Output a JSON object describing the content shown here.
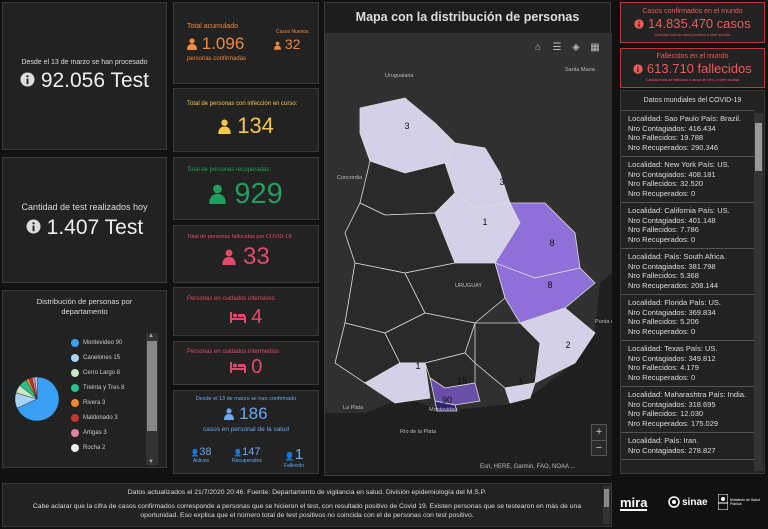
{
  "tests_total": {
    "caption": "Desde el 13 de marzo se han procesado",
    "value": "92.056 Test"
  },
  "tests_today": {
    "caption": "Cantidad de test realizados hoy",
    "value": "1.407 Test"
  },
  "pie": {
    "title": "Distribución de personas por departamento",
    "legend": [
      {
        "label": "Montevideo 90",
        "color": "#3aa0f5"
      },
      {
        "label": "Canelones 15",
        "color": "#a7d3f5"
      },
      {
        "label": "Cerro Largo 8",
        "color": "#c9e7c2"
      },
      {
        "label": "Treinta y Tres 8",
        "color": "#2bbf8c"
      },
      {
        "label": "Rivera 3",
        "color": "#f08a2c"
      },
      {
        "label": "Maldonado 3",
        "color": "#c0392b"
      },
      {
        "label": "Artigas 3",
        "color": "#e57fa0"
      },
      {
        "label": "Rocha 2",
        "color": "#eeeeee"
      }
    ]
  },
  "acumulado": {
    "title": "Total acumulado",
    "value": "1.096",
    "sub": "personas confirmadas",
    "new_label": "Casos Nuevos",
    "new_value": "32"
  },
  "en_curso": {
    "title": "Total de personas con infección en curso:",
    "value": "134"
  },
  "recuperadas": {
    "title": "Total de personas recuperadas:",
    "value": "929"
  },
  "fallecidas": {
    "title": "Total de personas fallecidas por COVID-19:",
    "value": "33"
  },
  "intensivos": {
    "title": "Personas en cuidados intensivos",
    "value": "4"
  },
  "intermedios": {
    "title": "Personas en cuidados intermedios",
    "value": "0"
  },
  "salud": {
    "caption": "Desde el 13 de marzo se han confirmado",
    "value": "186",
    "sub": "casos en personal de la salud",
    "activos_value": "38",
    "activos_label": "Activos",
    "recup_value": "147",
    "recup_label": "Recuperados",
    "fall_value": "1",
    "fall_label": "Fallecido"
  },
  "map": {
    "title": "Mapa con la distribución de personas",
    "attribution": "Esri, HERE, Garmin, FAO, NOAA ...",
    "place_labels": [
      "Uruguaiana",
      "Santa Maria",
      "Concordia",
      "URUGUAY",
      "La Plata",
      "Río de la Plata",
      "Montevideo",
      "Punta del Este"
    ],
    "dept_counts": [
      "3",
      "3",
      "1",
      "8",
      "8",
      "2",
      "1",
      "15",
      "3",
      "90"
    ],
    "zoom_in": "+",
    "zoom_out": "−"
  },
  "world_confirmed": {
    "title": "Casos confirmados en el mundo",
    "value": "14.835.470 casos",
    "note": "Cantidad total de casos positivos a nivel mundial"
  },
  "world_deaths": {
    "title": "Fallecidos en el mundo",
    "value": "613.710 fallecidos",
    "note": "Cantidad total de fallecidos a causa del virus a nivel mundial"
  },
  "world_list": {
    "title": "Datos mundiales del COVID-19",
    "items": [
      {
        "loc": "Localidad: Sao Paulo País: Brazil.",
        "cont": "Nro Contagiados: 416.434",
        "fall": "Nro Fallecidos: 19.788",
        "rec": "Nro Recuperados: 290.346"
      },
      {
        "loc": "Localidad: New York País: US.",
        "cont": "Nro Contagiados: 408.181",
        "fall": "Nro Fallecidos: 32.520",
        "rec": "Nro Recuperados: 0"
      },
      {
        "loc": "Localidad: California País: US.",
        "cont": "Nro Contagiados: 401.148",
        "fall": "Nro Fallecidos: 7.786",
        "rec": "Nro Recuperados: 0"
      },
      {
        "loc": "Localidad:  País: South Africa.",
        "cont": "Nro Contagiados: 381.798",
        "fall": "Nro Fallecidos: 5.368",
        "rec": "Nro Recuperados: 208.144"
      },
      {
        "loc": "Localidad: Florida País: US.",
        "cont": "Nro Contagiados: 369.834",
        "fall": "Nro Fallecidos: 5.206",
        "rec": "Nro Recuperados: 0"
      },
      {
        "loc": "Localidad: Texas País: US.",
        "cont": "Nro Contagiados: 349.812",
        "fall": "Nro Fallecidos: 4.179",
        "rec": "Nro Recuperados: 0"
      },
      {
        "loc": "Localidad: Maharashtra País: India.",
        "cont": "Nro Contagiados: 318.695",
        "fall": "Nro Fallecidos: 12.030",
        "rec": "Nro Recuperados: 175.029"
      },
      {
        "loc": "Localidad:  País: Iran.",
        "cont": "Nro Contagiados: 278.827",
        "fall": "",
        "rec": ""
      }
    ]
  },
  "footer": {
    "line1": "Datos actualizados el 21/7/2020 20:46. Fuente: Departamento de vigilancia en salud. División epidemiología del M.S.P.",
    "line2": "Cabe aclarar que la cifra de casos confirmados corresponde a personas que se hicieron el test, con resultado positivo de Covid 19. Existen personas que se testearon en más de una oportunidad. Eso explica que el número total de test positivos no coincida con el de personas con test positivo."
  },
  "logos": {
    "mira": "mira",
    "sinae": "sinae",
    "msp": "Ministerio de Salud Pública"
  },
  "colors": {
    "red": "#ef5b5b",
    "orange": "#f08a3c",
    "yellow": "#f5c84c",
    "green": "#1f9e5e",
    "pink": "#e24a6a",
    "blue": "#6aa8ef"
  }
}
